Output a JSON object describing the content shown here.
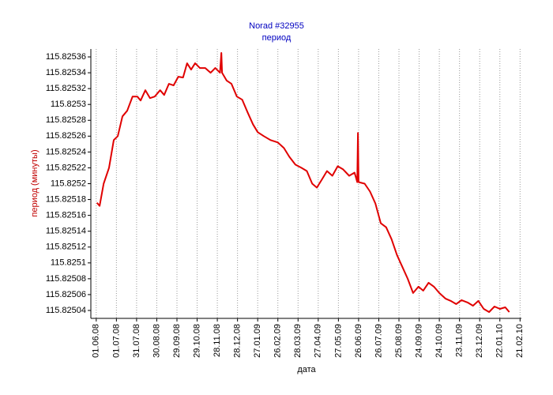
{
  "chart_data": {
    "type": "line",
    "title": "Norad #32955",
    "subtitle": "период",
    "ylabel": "период (минуты)",
    "xlabel": "дата",
    "xlim": [
      "24.05.08",
      "23.02.10"
    ],
    "xticks": [
      "01.06.08",
      "01.07.08",
      "31.07.08",
      "30.08.08",
      "29.09.08",
      "29.10.08",
      "28.11.08",
      "28.12.08",
      "27.01.09",
      "26.02.09",
      "28.03.09",
      "27.04.09",
      "27.05.09",
      "26.06.09",
      "26.07.09",
      "25.08.09",
      "24.09.09",
      "24.10.09",
      "23.11.09",
      "23.12.09",
      "22.01.10",
      "21.02.10"
    ],
    "ylim": [
      115.82503,
      115.82537
    ],
    "yticks": [
      115.82504,
      115.82506,
      115.82508,
      115.8251,
      115.82512,
      115.82514,
      115.82516,
      115.82518,
      115.8252,
      115.82522,
      115.82524,
      115.82526,
      115.82528,
      115.8253,
      115.82532,
      115.82534,
      115.82536
    ],
    "grid": true,
    "series": [
      {
        "name": "период",
        "color": "#e00000",
        "x": [
          "02.06.08",
          "06.06.08",
          "12.06.08",
          "20.06.08",
          "27.06.08",
          "03.07.08",
          "10.07.08",
          "17.07.08",
          "25.07.08",
          "01.08.08",
          "06.08.08",
          "13.08.08",
          "20.08.08",
          "27.08.08",
          "04.09.08",
          "10.09.08",
          "17.09.08",
          "24.09.08",
          "01.10.08",
          "08.10.08",
          "14.10.08",
          "20.10.08",
          "26.10.08",
          "02.11.08",
          "10.11.08",
          "18.11.08",
          "25.11.08",
          "02.12.08",
          "04.12.08",
          "05.12.08",
          "12.12.08",
          "19.12.08",
          "27.12.08",
          "04.01.09",
          "12.01.09",
          "20.01.09",
          "27.01.09",
          "05.02.09",
          "15.02.09",
          "26.02.09",
          "07.03.09",
          "15.03.09",
          "24.03.09",
          "02.04.09",
          "10.04.09",
          "18.04.09",
          "25.04.09",
          "03.05.09",
          "10.05.09",
          "18.05.09",
          "26.05.09",
          "03.06.09",
          "12.06.09",
          "20.06.09",
          "24.06.09",
          "25.06.09",
          "26.06.09",
          "05.07.09",
          "13.07.09",
          "21.07.09",
          "29.07.09",
          "06.08.09",
          "14.08.09",
          "22.08.09",
          "30.08.09",
          "07.09.09",
          "15.09.09",
          "23.09.09",
          "30.09.09",
          "08.10.09",
          "16.10.09",
          "24.10.09",
          "02.11.09",
          "10.11.09",
          "18.11.09",
          "26.11.09",
          "05.12.09",
          "13.12.09",
          "21.12.09",
          "29.12.09",
          "06.01.10",
          "14.01.10",
          "22.01.10",
          "30.01.10",
          "05.02.10"
        ],
        "values": [
          115.825176,
          115.825172,
          115.8252,
          115.82522,
          115.825255,
          115.82526,
          115.825285,
          115.825292,
          115.82531,
          115.82531,
          115.825305,
          115.825318,
          115.825308,
          115.82531,
          115.825318,
          115.825312,
          115.825326,
          115.825324,
          115.825335,
          115.825334,
          115.825352,
          115.825344,
          115.825352,
          115.825346,
          115.825346,
          115.82534,
          115.825346,
          115.82534,
          115.825365,
          115.82534,
          115.82533,
          115.825326,
          115.82531,
          115.825306,
          115.82529,
          115.825275,
          115.825265,
          115.82526,
          115.825255,
          115.825252,
          115.825245,
          115.825234,
          115.825224,
          115.82522,
          115.825216,
          115.8252,
          115.825195,
          115.825206,
          115.825216,
          115.82521,
          115.825222,
          115.825218,
          115.82521,
          115.825214,
          115.825202,
          115.825264,
          115.825202,
          115.8252,
          115.82519,
          115.825175,
          115.82515,
          115.825145,
          115.82513,
          115.82511,
          115.825095,
          115.82508,
          115.825062,
          115.82507,
          115.825065,
          115.825075,
          115.82507,
          115.825062,
          115.825055,
          115.825052,
          115.825048,
          115.825053,
          115.82505,
          115.825046,
          115.825052,
          115.825042,
          115.825038,
          115.825045,
          115.825042,
          115.825044,
          115.825038
        ]
      }
    ]
  }
}
